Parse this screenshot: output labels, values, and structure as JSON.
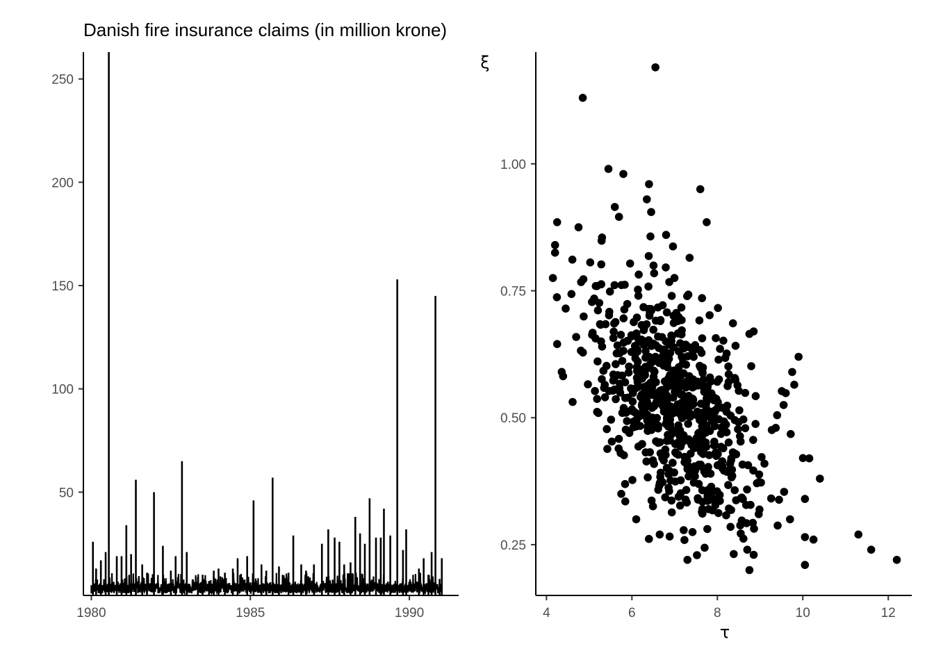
{
  "colors": {
    "ink": "#000000",
    "tick_text": "#4d4d4d",
    "background": "#ffffff"
  },
  "chart_data": [
    {
      "type": "line",
      "title": "Danish fire insurance claims (in million krone)",
      "xlabel": "",
      "ylabel": "",
      "xlim": [
        1979.75,
        1991.55
      ],
      "ylim": [
        0,
        263
      ],
      "x_ticks": [
        1980,
        1985,
        1990
      ],
      "x_tick_labels": [
        "1980",
        "1985",
        "1990"
      ],
      "y_ticks": [
        50,
        100,
        150,
        200,
        250
      ],
      "y_tick_labels": [
        "50",
        "100",
        "150",
        "200",
        "250"
      ],
      "grid": false,
      "legend": "none",
      "baseline_noise_max": 5,
      "spikes": [
        {
          "x": 1980.05,
          "y": 26
        },
        {
          "x": 1980.15,
          "y": 13
        },
        {
          "x": 1980.3,
          "y": 17
        },
        {
          "x": 1980.45,
          "y": 21
        },
        {
          "x": 1980.55,
          "y": 263
        },
        {
          "x": 1980.8,
          "y": 19
        },
        {
          "x": 1980.95,
          "y": 19
        },
        {
          "x": 1981.1,
          "y": 34
        },
        {
          "x": 1981.25,
          "y": 20
        },
        {
          "x": 1981.4,
          "y": 56
        },
        {
          "x": 1981.6,
          "y": 15
        },
        {
          "x": 1981.75,
          "y": 11
        },
        {
          "x": 1981.97,
          "y": 50
        },
        {
          "x": 1982.25,
          "y": 24
        },
        {
          "x": 1982.5,
          "y": 12
        },
        {
          "x": 1982.65,
          "y": 19
        },
        {
          "x": 1982.85,
          "y": 65
        },
        {
          "x": 1983.0,
          "y": 21
        },
        {
          "x": 1983.35,
          "y": 9
        },
        {
          "x": 1983.5,
          "y": 10
        },
        {
          "x": 1983.7,
          "y": 7
        },
        {
          "x": 1983.85,
          "y": 12
        },
        {
          "x": 1984.0,
          "y": 13
        },
        {
          "x": 1984.2,
          "y": 11
        },
        {
          "x": 1984.45,
          "y": 13
        },
        {
          "x": 1984.6,
          "y": 18
        },
        {
          "x": 1984.9,
          "y": 19
        },
        {
          "x": 1985.1,
          "y": 46
        },
        {
          "x": 1985.35,
          "y": 15
        },
        {
          "x": 1985.5,
          "y": 12
        },
        {
          "x": 1985.7,
          "y": 57
        },
        {
          "x": 1985.9,
          "y": 14
        },
        {
          "x": 1986.2,
          "y": 11
        },
        {
          "x": 1986.35,
          "y": 29
        },
        {
          "x": 1986.6,
          "y": 15
        },
        {
          "x": 1986.75,
          "y": 12
        },
        {
          "x": 1987.0,
          "y": 15
        },
        {
          "x": 1987.25,
          "y": 25
        },
        {
          "x": 1987.45,
          "y": 32
        },
        {
          "x": 1987.65,
          "y": 28
        },
        {
          "x": 1987.8,
          "y": 26
        },
        {
          "x": 1987.95,
          "y": 15
        },
        {
          "x": 1988.15,
          "y": 16
        },
        {
          "x": 1988.3,
          "y": 38
        },
        {
          "x": 1988.45,
          "y": 30
        },
        {
          "x": 1988.6,
          "y": 25
        },
        {
          "x": 1988.75,
          "y": 47
        },
        {
          "x": 1988.95,
          "y": 28
        },
        {
          "x": 1989.1,
          "y": 28
        },
        {
          "x": 1989.2,
          "y": 42
        },
        {
          "x": 1989.4,
          "y": 29
        },
        {
          "x": 1989.62,
          "y": 153
        },
        {
          "x": 1989.8,
          "y": 22
        },
        {
          "x": 1989.9,
          "y": 32
        },
        {
          "x": 1990.3,
          "y": 13
        },
        {
          "x": 1990.45,
          "y": 18
        },
        {
          "x": 1990.6,
          "y": 10
        },
        {
          "x": 1990.7,
          "y": 21
        },
        {
          "x": 1990.82,
          "y": 145
        },
        {
          "x": 1990.95,
          "y": 8
        },
        {
          "x": 1991.02,
          "y": 18
        }
      ]
    },
    {
      "type": "scatter",
      "title": "",
      "xlabel": "τ",
      "ylabel": "ξ",
      "xlim": [
        3.75,
        12.55
      ],
      "ylim": [
        0.15,
        1.22
      ],
      "x_ticks": [
        4,
        6,
        8,
        10,
        12
      ],
      "x_tick_labels": [
        "4",
        "6",
        "8",
        "10",
        "12"
      ],
      "y_ticks": [
        0.25,
        0.5,
        0.75,
        1.0
      ],
      "y_tick_labels": [
        "0.25",
        "0.50",
        "0.75",
        "1.00"
      ],
      "grid": false,
      "legend": "none",
      "cloud": {
        "n": 720,
        "mean_tau": 7.0,
        "sd_tau": 1.05,
        "mean_xi": 0.52,
        "sd_xi": 0.13,
        "correlation": -0.55
      },
      "points": [
        {
          "x": 6.55,
          "y": 1.19
        },
        {
          "x": 4.85,
          "y": 1.13
        },
        {
          "x": 5.45,
          "y": 0.99
        },
        {
          "x": 5.8,
          "y": 0.98
        },
        {
          "x": 6.4,
          "y": 0.96
        },
        {
          "x": 7.6,
          "y": 0.95
        },
        {
          "x": 6.35,
          "y": 0.93
        },
        {
          "x": 5.6,
          "y": 0.915
        },
        {
          "x": 6.45,
          "y": 0.905
        },
        {
          "x": 4.25,
          "y": 0.885
        },
        {
          "x": 7.75,
          "y": 0.885
        },
        {
          "x": 4.75,
          "y": 0.875
        },
        {
          "x": 6.8,
          "y": 0.86
        },
        {
          "x": 5.3,
          "y": 0.855
        },
        {
          "x": 4.2,
          "y": 0.84
        },
        {
          "x": 4.2,
          "y": 0.825
        },
        {
          "x": 7.35,
          "y": 0.815
        },
        {
          "x": 4.15,
          "y": 0.775
        },
        {
          "x": 4.45,
          "y": 0.715
        },
        {
          "x": 4.25,
          "y": 0.645
        },
        {
          "x": 8.75,
          "y": 0.665
        },
        {
          "x": 8.85,
          "y": 0.67
        },
        {
          "x": 9.9,
          "y": 0.62
        },
        {
          "x": 9.75,
          "y": 0.59
        },
        {
          "x": 9.8,
          "y": 0.565
        },
        {
          "x": 9.55,
          "y": 0.525
        },
        {
          "x": 9.4,
          "y": 0.505
        },
        {
          "x": 10.15,
          "y": 0.42
        },
        {
          "x": 10.4,
          "y": 0.38
        },
        {
          "x": 10.05,
          "y": 0.34
        },
        {
          "x": 9.7,
          "y": 0.3
        },
        {
          "x": 11.3,
          "y": 0.27
        },
        {
          "x": 11.6,
          "y": 0.24
        },
        {
          "x": 12.2,
          "y": 0.22
        },
        {
          "x": 10.05,
          "y": 0.265
        },
        {
          "x": 10.25,
          "y": 0.26
        },
        {
          "x": 10.05,
          "y": 0.21
        },
        {
          "x": 8.75,
          "y": 0.2
        },
        {
          "x": 7.3,
          "y": 0.22
        },
        {
          "x": 8.85,
          "y": 0.23
        },
        {
          "x": 8.7,
          "y": 0.24
        },
        {
          "x": 6.65,
          "y": 0.27
        },
        {
          "x": 6.1,
          "y": 0.3
        },
        {
          "x": 5.75,
          "y": 0.35
        }
      ]
    }
  ]
}
